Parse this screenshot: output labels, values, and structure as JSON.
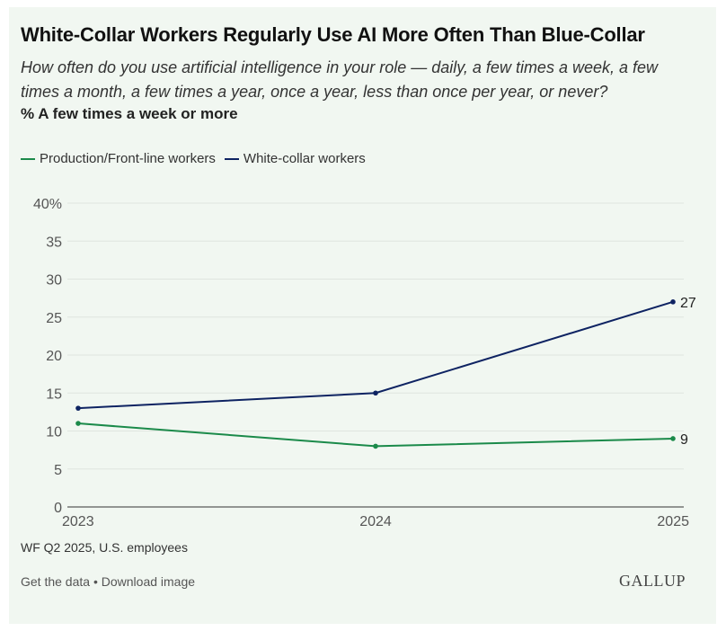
{
  "header": {
    "title": "White-Collar Workers Regularly Use AI More Often Than Blue-Collar",
    "subtitle": "How often do you use artificial intelligence in your role — daily, a few times a week, a few times a month, a few times a year, once a year, less than once per year, or never?",
    "measure": "% A few times a week or more"
  },
  "chart_data": {
    "type": "line",
    "x": [
      "2023",
      "2024",
      "2025"
    ],
    "series": [
      {
        "name": "Production/Front-line workers",
        "color": "#1b8a4a",
        "values": [
          11,
          8,
          9
        ]
      },
      {
        "name": "White-collar workers",
        "color": "#0e2362",
        "values": [
          13,
          15,
          27
        ]
      }
    ],
    "y_ticks": [
      0,
      5,
      10,
      15,
      20,
      25,
      30,
      35,
      40
    ],
    "top_tick_label": "40%",
    "ylim": [
      0,
      40
    ],
    "end_labels": [
      "9",
      "27"
    ],
    "grid": true,
    "legend_position": "top-left"
  },
  "footer": {
    "note": "WF Q2 2025, U.S. employees",
    "link_data": "Get the data",
    "separator": " • ",
    "link_image": "Download image",
    "brand": "GALLUP"
  },
  "colors": {
    "background": "#f1f7f1",
    "grid": "#dfe6df",
    "axis": "#333333"
  }
}
